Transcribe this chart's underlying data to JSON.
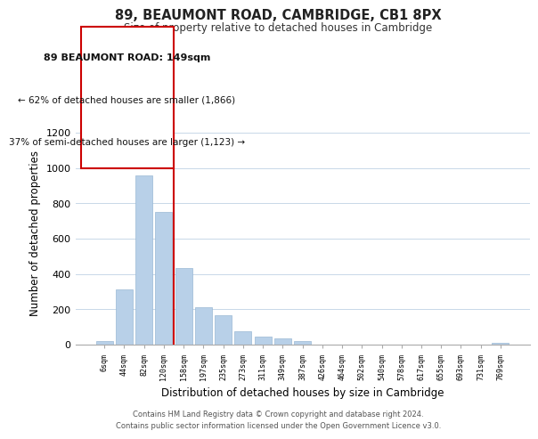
{
  "title": "89, BEAUMONT ROAD, CAMBRIDGE, CB1 8PX",
  "subtitle": "Size of property relative to detached houses in Cambridge",
  "xlabel": "Distribution of detached houses by size in Cambridge",
  "ylabel": "Number of detached properties",
  "bin_labels": [
    "6sqm",
    "44sqm",
    "82sqm",
    "120sqm",
    "158sqm",
    "197sqm",
    "235sqm",
    "273sqm",
    "311sqm",
    "349sqm",
    "387sqm",
    "426sqm",
    "464sqm",
    "502sqm",
    "540sqm",
    "578sqm",
    "617sqm",
    "655sqm",
    "693sqm",
    "731sqm",
    "769sqm"
  ],
  "bar_heights": [
    20,
    310,
    960,
    750,
    435,
    210,
    165,
    75,
    47,
    33,
    18,
    0,
    0,
    0,
    0,
    0,
    0,
    0,
    0,
    0,
    8
  ],
  "bar_color": "#b8d0e8",
  "bar_edge_color": "#99b8d4",
  "vline_x": 3.5,
  "vline_color": "#cc0000",
  "ann_line1": "89 BEAUMONT ROAD: 149sqm",
  "ann_line2": "← 62% of detached houses are smaller (1,866)",
  "ann_line3": "37% of semi-detached houses are larger (1,123) →",
  "box_edge_color": "#cc0000",
  "ylim": [
    0,
    1260
  ],
  "yticks": [
    0,
    200,
    400,
    600,
    800,
    1000,
    1200
  ],
  "footer_line1": "Contains HM Land Registry data © Crown copyright and database right 2024.",
  "footer_line2": "Contains public sector information licensed under the Open Government Licence v3.0.",
  "bg_color": "#ffffff",
  "grid_color": "#c8d8e8"
}
